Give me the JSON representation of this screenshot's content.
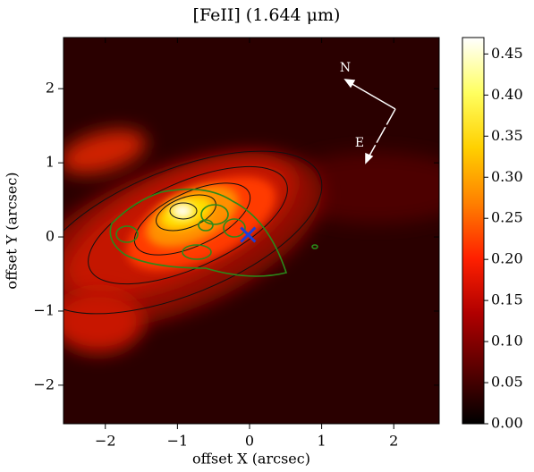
{
  "chart_data": {
    "type": "heatmap",
    "title": "[FeII] (1.644 μm)",
    "x_label": "offset X (arcsec)",
    "y_label": "offset Y (arcsec)",
    "xlim": [
      -2.58,
      2.63
    ],
    "ylim": [
      -2.52,
      2.69
    ],
    "xticks": [
      {
        "value": -2,
        "label": "−2"
      },
      {
        "value": -1,
        "label": "−1"
      },
      0,
      1,
      2
    ],
    "yticks": [
      {
        "value": -2,
        "label": "−2"
      },
      {
        "value": -1,
        "label": "−1"
      },
      0,
      1,
      2
    ],
    "clim": [
      0,
      0.47
    ],
    "cticks": [
      {
        "value": 0,
        "label": "0.00"
      },
      {
        "value": 0.05,
        "label": "0.05"
      },
      {
        "value": 0.1,
        "label": "0.10"
      },
      {
        "value": 0.15,
        "label": "0.15"
      },
      {
        "value": 0.2,
        "label": "0.20"
      },
      {
        "value": 0.25,
        "label": "0.25"
      },
      {
        "value": 0.3,
        "label": "0.30"
      },
      {
        "value": 0.35,
        "label": "0.35"
      },
      {
        "value": 0.4,
        "label": "0.40"
      },
      {
        "value": 0.45,
        "label": "0.45"
      }
    ],
    "colormap": [
      "#000000",
      "#5a0000",
      "#b00000",
      "#ff2000",
      "#ff8000",
      "#ffd000",
      "#ffff60",
      "#ffffff"
    ],
    "marker": {
      "x": -0.02,
      "y": 0.03,
      "color": "#1f3fd6"
    },
    "compass": {
      "north": "N",
      "east": "E"
    }
  }
}
